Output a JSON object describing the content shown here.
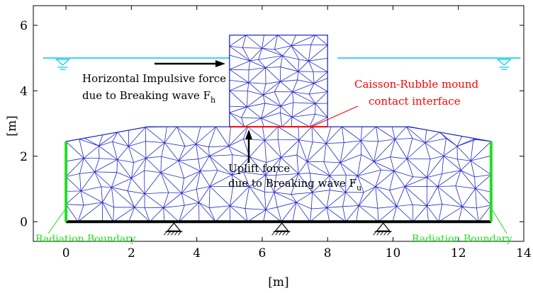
{
  "axes": {
    "xlabel": "[m]",
    "ylabel": "[m]",
    "xlim": [
      -1,
      14
    ],
    "ylim": [
      -0.6,
      6.6
    ],
    "x_ticks": [
      0,
      2,
      4,
      6,
      8,
      10,
      12,
      14
    ],
    "y_ticks": [
      0,
      2,
      4,
      6
    ]
  },
  "geometry": {
    "water_level": 5.0,
    "caisson": {
      "x0": 5.0,
      "x1": 8.0,
      "y0": 2.9,
      "y1": 5.7
    },
    "mound": [
      [
        0,
        0
      ],
      [
        13,
        0
      ],
      [
        13,
        2.45
      ],
      [
        10.5,
        2.9
      ],
      [
        2.5,
        2.9
      ],
      [
        0,
        2.45
      ]
    ],
    "contact_interface": {
      "x0": 5.0,
      "x1": 8.0,
      "y": 2.9
    },
    "radiation_boundaries_x": [
      0,
      13
    ],
    "supports_x": [
      3.3,
      6.6,
      9.7
    ]
  },
  "annotations": {
    "horizontal_force_1": "Horizontal Impulsive force",
    "horizontal_force_2": "due to Breaking wave F",
    "horizontal_force_sub": "h",
    "uplift_1": "Uplift force",
    "uplift_2": "due to Breaking wave F",
    "uplift_sub": "u",
    "contact_1": "Caisson-Rubble mound",
    "contact_2": "contact interface",
    "radiation_left": "Radiation Boundary",
    "radiation_right": "Radiation Boundary"
  },
  "colors": {
    "mesh": "#1f28c8",
    "water": "#00c8e6",
    "contact": "#ff0000",
    "radiation": "#22dd22",
    "base": "#000000"
  }
}
